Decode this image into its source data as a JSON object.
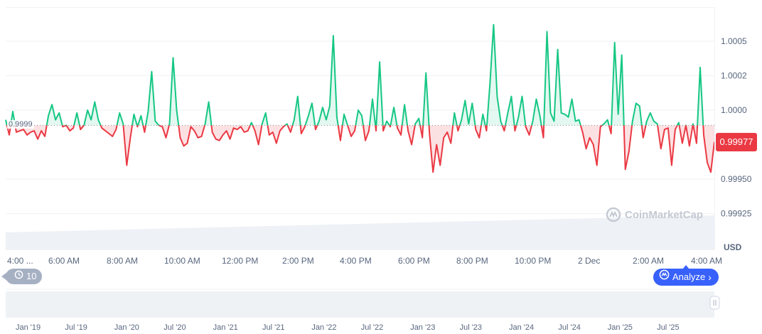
{
  "chart_data": {
    "type": "line",
    "currency_label": "USD",
    "baseline_value": 0.99989,
    "baseline_label": "0.9999",
    "current_price": 0.99977,
    "current_price_label": "0.99977",
    "ylim": [
      0.999,
      1.0007
    ],
    "y_ticks": [
      {
        "value": 1.0005,
        "label": "1.0005"
      },
      {
        "value": 1.00025,
        "label": "1.0002"
      },
      {
        "value": 1.0,
        "label": "1.0000"
      },
      {
        "value": 0.9995,
        "label": "0.99950"
      },
      {
        "value": 0.99925,
        "label": "0.99925"
      }
    ],
    "x_tick_labels": [
      "4:00 ...",
      "6:00 AM",
      "8:00 AM",
      "10:00 AM",
      "12:00 PM",
      "2:00 PM",
      "4:00 PM",
      "6:00 PM",
      "8:00 PM",
      "10:00 PM",
      "2 Dec",
      "2:00 AM",
      "4:00 AM"
    ],
    "grid": true,
    "colors": {
      "up": "#16c784",
      "down": "#ea3943",
      "accent": "#3861fb"
    },
    "values": [
      0.99993,
      0.99982,
      0.99999,
      0.99984,
      0.99985,
      0.99986,
      0.99982,
      0.99984,
      0.99985,
      0.99979,
      0.99985,
      0.99981,
      0.99996,
      1.00004,
      0.99993,
      0.99998,
      0.99988,
      0.99989,
      0.99985,
      0.99987,
      0.99998,
      0.99986,
      0.99989,
      1.0,
      0.99993,
      1.00006,
      0.99993,
      0.99987,
      0.99985,
      0.99983,
      0.99981,
      0.99986,
      0.99998,
      0.9999,
      0.9996,
      0.9998,
      0.99997,
      0.99988,
      0.99996,
      0.99984,
      0.99999,
      1.00028,
      0.99992,
      0.99989,
      0.99988,
      0.9998,
      0.9999,
      1.00038,
      1.0,
      0.9998,
      0.99974,
      0.99976,
      0.99988,
      0.99985,
      0.9998,
      0.99981,
      0.9999,
      1.00006,
      0.99984,
      0.99979,
      0.99978,
      0.99982,
      0.99985,
      0.99979,
      0.99987,
      0.99986,
      0.99988,
      0.99984,
      0.99985,
      0.99991,
      0.99985,
      0.99975,
      0.9999,
      0.99998,
      0.99982,
      0.99984,
      0.99976,
      0.99985,
      0.99988,
      0.9999,
      0.99984,
      0.99993,
      1.0001,
      0.99983,
      0.99988,
      0.99996,
      1.00005,
      0.99986,
      0.99992,
      1.00002,
      0.99993,
      1.00003,
      1.00054,
      0.99995,
      0.99978,
      0.99997,
      0.99989,
      0.99981,
      0.99985,
      1.0,
      0.99996,
      0.99978,
      0.99985,
      1.00008,
      0.99985,
      1.00035,
      0.99985,
      0.99992,
      0.99988,
      1.00002,
      0.99987,
      0.99982,
      1.00004,
      0.99985,
      0.99975,
      0.9999,
      0.99994,
      0.9998,
      1.00027,
      0.99983,
      0.99955,
      0.99975,
      0.9996,
      0.9998,
      0.99984,
      0.99976,
      0.99998,
      0.99985,
      0.99993,
      1.00007,
      0.9999,
      1.00005,
      0.99986,
      0.9998,
      0.99997,
      0.99985,
      1.0002,
      1.00062,
      1.0001,
      0.99992,
      0.99985,
      0.99998,
      1.0001,
      0.99985,
      0.99995,
      1.0001,
      0.99988,
      0.99982,
      0.99992,
      1.00008,
      0.99996,
      0.9998,
      1.00057,
      0.99998,
      0.99992,
      1.00044,
      0.99998,
      0.99997,
      0.99995,
      1.00008,
      0.99992,
      0.99993,
      0.99984,
      0.99972,
      0.9998,
      0.99975,
      0.9996,
      0.99988,
      0.9999,
      0.99993,
      0.99983,
      1.00049,
      0.99997,
      1.0004,
      0.99957,
      0.9997,
      0.99992,
      1.00005,
      1.00003,
      0.9998,
      0.99992,
      0.99998,
      0.99992,
      0.9999,
      0.99972,
      0.99986,
      0.99987,
      0.9996,
      0.99986,
      0.99991,
      0.99976,
      0.99989,
      0.99974,
      0.9999,
      0.99976,
      1.00031,
      0.99982,
      0.99962,
      0.99955,
      0.99977
    ]
  },
  "navigator": {
    "x_tick_labels": [
      "Jan '19",
      "Jul '19",
      "Jan '20",
      "Jul '20",
      "Jan '21",
      "Jul '21",
      "Jan '22",
      "Jul '22",
      "Jan '23",
      "Jul '23",
      "Jan '24",
      "Jul '24",
      "Jan '25",
      "Jul '25"
    ]
  },
  "controls": {
    "history_count": "10",
    "history_icon": "history-clock-icon",
    "analyze_label": "Analyze",
    "analyze_icon": "analyze-logo-icon"
  },
  "watermark": "CoinMarketCap"
}
